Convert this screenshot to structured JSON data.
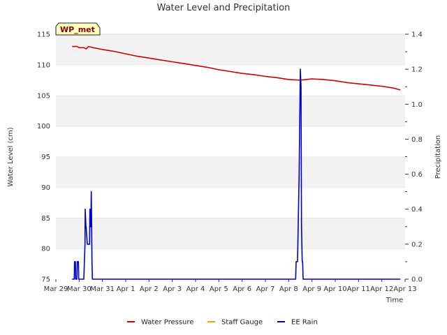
{
  "chart_data": {
    "type": "line",
    "title": "Water Level and Precipitation",
    "badge": "WP_met",
    "xlabel": "Time",
    "ylabel_left": "Water Level (cm)",
    "ylabel_right": "Precipitation",
    "ylim_left": [
      75,
      115
    ],
    "ylim_right": [
      0,
      1.4
    ],
    "left_ticks": [
      75,
      80,
      85,
      90,
      95,
      100,
      105,
      110,
      115
    ],
    "right_ticks": [
      "0.0",
      "0.2",
      "0.4",
      "0.6",
      "0.8",
      "1.0",
      "1.2",
      "1.4"
    ],
    "x_ticks": [
      "Mar 29",
      "Mar 30",
      "Mar 31",
      "Apr 1",
      "Apr 2",
      "Apr 3",
      "Apr 4",
      "Apr 5",
      "Apr 6",
      "Apr 7",
      "Apr 8",
      "Apr 9",
      "Apr 10",
      "Apr 11",
      "Apr 12",
      "Apr 13"
    ],
    "grid": "horizontal bands",
    "legend_position": "bottom-center",
    "series": [
      {
        "name": "Water Pressure",
        "axis": "left",
        "color": "#cc0000",
        "x": [
          0.7,
          0.9,
          1.0,
          1.2,
          1.3,
          1.4,
          1.5,
          1.6,
          2.0,
          2.5,
          3.0,
          3.5,
          4.0,
          4.5,
          5.0,
          5.5,
          6.0,
          6.5,
          7.0,
          7.5,
          8.0,
          8.5,
          9.0,
          9.5,
          10.0,
          10.5,
          11.0,
          11.5,
          12.0,
          12.5,
          13.0,
          13.5,
          14.0,
          14.5,
          14.8
        ],
        "y": [
          113.0,
          113.0,
          112.8,
          112.8,
          112.6,
          113.0,
          112.9,
          112.8,
          112.5,
          112.2,
          111.8,
          111.4,
          111.1,
          110.8,
          110.5,
          110.2,
          109.9,
          109.6,
          109.2,
          108.9,
          108.6,
          108.4,
          108.1,
          107.9,
          107.6,
          107.5,
          107.7,
          107.6,
          107.4,
          107.1,
          106.9,
          106.7,
          106.5,
          106.2,
          105.9
        ]
      },
      {
        "name": "Staff Gauge",
        "axis": "left",
        "color": "#f0a000",
        "x": [],
        "y": []
      },
      {
        "name": "EE Rain",
        "axis": "right",
        "color": "#0000cc",
        "x": [
          0.7,
          0.79,
          0.8,
          0.84,
          0.85,
          0.9,
          0.92,
          0.97,
          0.98,
          1.2,
          1.25,
          1.26,
          1.29,
          1.3,
          1.35,
          1.4,
          1.45,
          1.46,
          1.5,
          1.52,
          1.53,
          1.55,
          1.57,
          10.3,
          10.32,
          10.35,
          10.38,
          10.45,
          10.5,
          10.53,
          10.55,
          10.58,
          10.6,
          10.62,
          14.8
        ],
        "y": [
          0.0,
          0.0,
          0.1,
          0.1,
          0.0,
          0.0,
          0.1,
          0.1,
          0.0,
          0.0,
          0.2,
          0.4,
          0.3,
          0.3,
          0.2,
          0.2,
          0.2,
          0.4,
          0.3,
          0.5,
          0.4,
          0.1,
          0.0,
          0.0,
          0.1,
          0.1,
          0.1,
          0.6,
          1.2,
          1.1,
          0.3,
          0.1,
          0.1,
          0.0,
          0.0
        ]
      }
    ]
  }
}
